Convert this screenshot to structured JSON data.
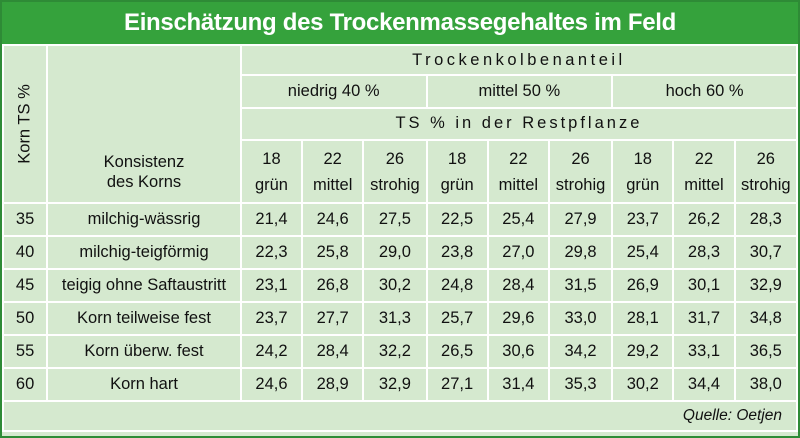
{
  "title": "Einschätzung des Trockenmassegehaltes im Feld",
  "header": {
    "korn_ts": "Korn TS %",
    "trockenkolben": "Trockenkolbenanteil",
    "levels": [
      "niedrig  40 %",
      "mittel  50 %",
      "hoch  60 %"
    ],
    "ts_restpflanze": "TS % in der Restpflanze",
    "konsistenz_line1": "Konsistenz",
    "konsistenz_line2": "des Korns",
    "sub_columns": [
      {
        "num": "18",
        "word": "grün"
      },
      {
        "num": "22",
        "word": "mittel"
      },
      {
        "num": "26",
        "word": "strohig"
      },
      {
        "num": "18",
        "word": "grün"
      },
      {
        "num": "22",
        "word": "mittel"
      },
      {
        "num": "26",
        "word": "strohig"
      },
      {
        "num": "18",
        "word": "grün"
      },
      {
        "num": "22",
        "word": "mittel"
      },
      {
        "num": "26",
        "word": "strohig"
      }
    ]
  },
  "rows": [
    {
      "korn": "35",
      "konsistenz": "milchig-wässrig",
      "values": [
        "21,4",
        "24,6",
        "27,5",
        "22,5",
        "25,4",
        "27,9",
        "23,7",
        "26,2",
        "28,3"
      ]
    },
    {
      "korn": "40",
      "konsistenz": "milchig-teigförmig",
      "values": [
        "22,3",
        "25,8",
        "29,0",
        "23,8",
        "27,0",
        "29,8",
        "25,4",
        "28,3",
        "30,7"
      ]
    },
    {
      "korn": "45",
      "konsistenz": "teigig ohne Saftaustritt",
      "values": [
        "23,1",
        "26,8",
        "30,2",
        "24,8",
        "28,4",
        "31,5",
        "26,9",
        "30,1",
        "32,9"
      ]
    },
    {
      "korn": "50",
      "konsistenz": "Korn teilweise fest",
      "values": [
        "23,7",
        "27,7",
        "31,3",
        "25,7",
        "29,6",
        "33,0",
        "28,1",
        "31,7",
        "34,8"
      ]
    },
    {
      "korn": "55",
      "konsistenz": "Korn überw. fest",
      "values": [
        "24,2",
        "28,4",
        "32,2",
        "26,5",
        "30,6",
        "34,2",
        "29,2",
        "33,1",
        "36,5"
      ]
    },
    {
      "korn": "60",
      "konsistenz": "Korn hart",
      "values": [
        "24,6",
        "28,9",
        "32,9",
        "27,1",
        "31,4",
        "35,3",
        "30,2",
        "34,4",
        "38,0"
      ]
    }
  ],
  "source": "Quelle: Oetjen"
}
